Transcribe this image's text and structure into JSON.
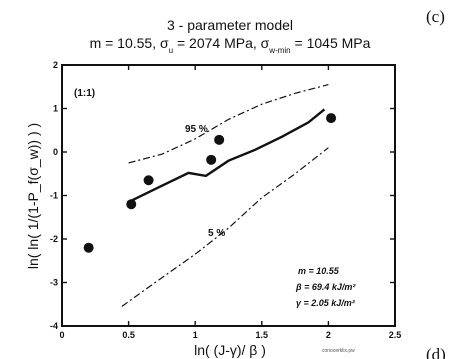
{
  "chart_data": {
    "type": "scatter",
    "title": "3 - parameter model",
    "subtitle": {
      "m": "m = 10.55, ",
      "sigma_u": "σ",
      "sigma_u_sub": "u",
      "sigma_u_val": " = 2074 MPa, ",
      "sigma_wmin": "σ",
      "sigma_wmin_sub": "w-min",
      "sigma_wmin_val": " = 1045 MPa"
    },
    "xlabel": "ln( (J-γ)/ β )",
    "ylabel": "ln( ln( 1/(1-P_f(σ_w)) ) )",
    "xlim": [
      0,
      2.5
    ],
    "ylim": [
      -4,
      2
    ],
    "xticks": [
      "0",
      "0.5",
      "1",
      "1.5",
      "2",
      "2.5"
    ],
    "xtick_values": [
      0,
      0.5,
      1,
      1.5,
      2,
      2.5
    ],
    "yticks": [
      "-4",
      "-3",
      "-2",
      "-1",
      "0",
      "1",
      "2"
    ],
    "ytick_values": [
      -4,
      -3,
      -2,
      -1,
      0,
      1,
      2
    ],
    "grid": false,
    "panel_label": "(1:1)",
    "points": [
      {
        "x": 0.2,
        "y": -2.2
      },
      {
        "x": 0.52,
        "y": -1.2
      },
      {
        "x": 0.65,
        "y": -0.65
      },
      {
        "x": 1.12,
        "y": -0.18
      },
      {
        "x": 1.18,
        "y": 0.28
      },
      {
        "x": 2.02,
        "y": 0.78
      }
    ],
    "fit_line": {
      "x": [
        0.52,
        0.72,
        0.95,
        1.08,
        1.25,
        1.45,
        1.65,
        1.85,
        1.97
      ],
      "y": [
        -1.12,
        -0.82,
        -0.48,
        -0.55,
        -0.2,
        0.05,
        0.35,
        0.68,
        0.98
      ]
    },
    "upper_band": {
      "label": "95 %",
      "x": [
        0.5,
        0.75,
        1.0,
        1.25,
        1.5,
        1.75,
        2.0
      ],
      "y": [
        -0.25,
        -0.05,
        0.3,
        0.75,
        1.1,
        1.35,
        1.55
      ]
    },
    "lower_band": {
      "label": "5 %",
      "x": [
        0.45,
        0.7,
        1.0,
        1.25,
        1.5,
        1.75,
        2.0
      ],
      "y": [
        -3.55,
        -3.0,
        -2.35,
        -1.75,
        -1.05,
        -0.5,
        0.1
      ]
    },
    "parameters": [
      "m = 10.55",
      "β = 69.4 kJ/m²",
      "γ = 2.05 kJ/m²"
    ]
  },
  "corner_labels": {
    "top": "(c)",
    "bottom": "(d)"
  },
  "watermark_text": "conocerklix.pw"
}
